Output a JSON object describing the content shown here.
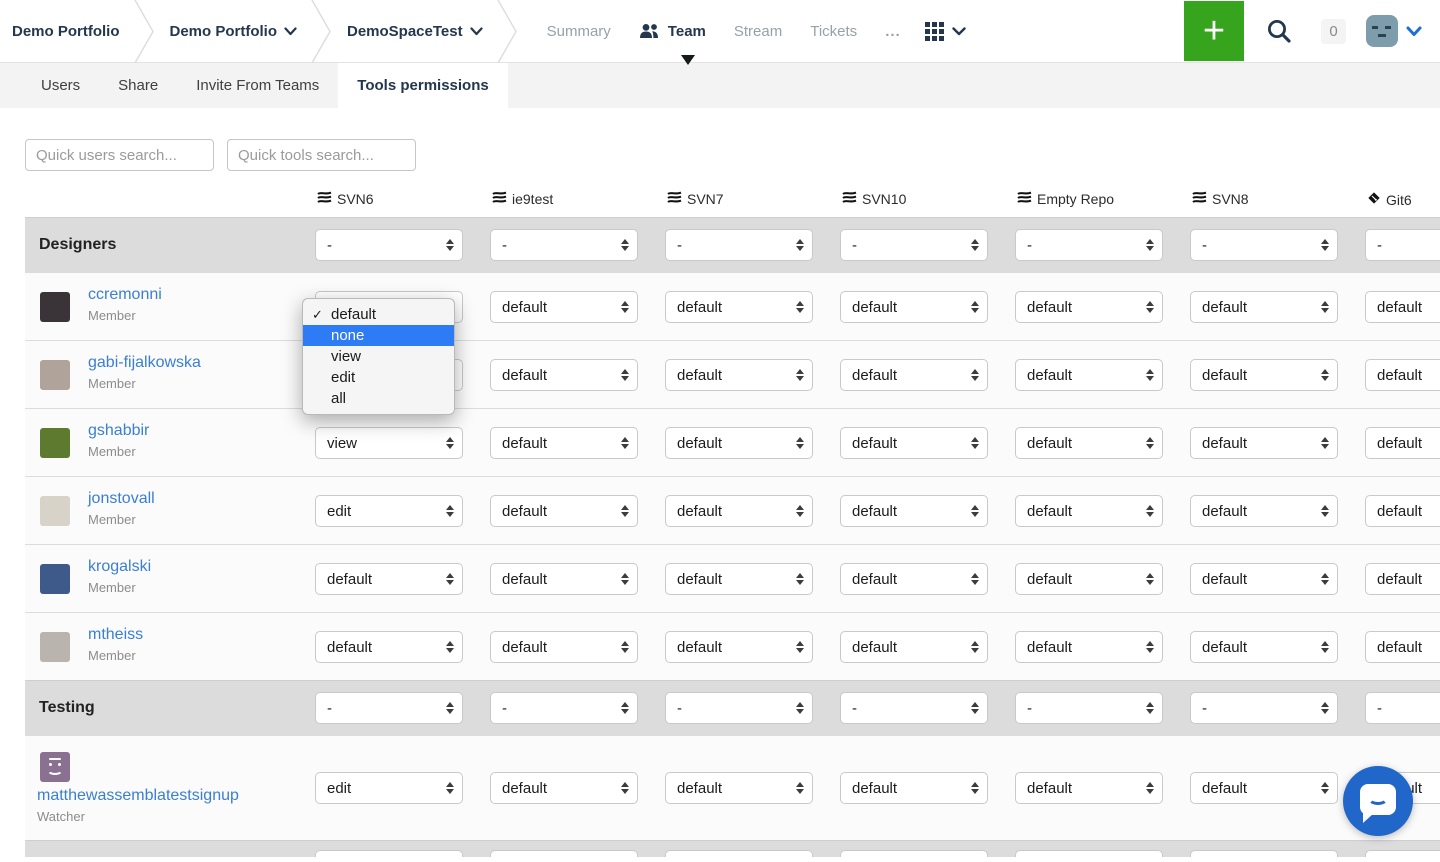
{
  "topbar": {
    "breadcrumbs": [
      {
        "label": "Demo Portfolio",
        "dropdown": false
      },
      {
        "label": "Demo Portfolio",
        "dropdown": true
      },
      {
        "label": "DemoSpaceTest",
        "dropdown": true
      }
    ],
    "nav": [
      {
        "label": "Summary",
        "active": false
      },
      {
        "label": "Team",
        "active": true,
        "icon": "team-icon"
      },
      {
        "label": "Stream",
        "active": false
      },
      {
        "label": "Tickets",
        "active": false
      },
      {
        "label": "...",
        "active": false
      }
    ],
    "badge_count": "0",
    "add_button_label": "+",
    "colors": {
      "add_green": "#36a51d",
      "caret_blue": "#1d6fd2",
      "avatar_slate": "#7e9dac"
    }
  },
  "tabs": [
    {
      "label": "Users",
      "active": false
    },
    {
      "label": "Share",
      "active": false
    },
    {
      "label": "Invite From Teams",
      "active": false
    },
    {
      "label": "Tools permissions",
      "active": true
    }
  ],
  "search": {
    "users_placeholder": "Quick users search...",
    "tools_placeholder": "Quick tools search..."
  },
  "table": {
    "columns": [
      {
        "name": "SVN6",
        "type": "svn"
      },
      {
        "name": "ie9test",
        "type": "svn"
      },
      {
        "name": "SVN7",
        "type": "svn"
      },
      {
        "name": "SVN10",
        "type": "svn"
      },
      {
        "name": "Empty Repo",
        "type": "svn"
      },
      {
        "name": "SVN8",
        "type": "svn"
      },
      {
        "name": "Git6",
        "type": "git"
      }
    ],
    "rows": [
      {
        "kind": "group",
        "label": "Designers",
        "values": [
          "-",
          "-",
          "-",
          "-",
          "-",
          "-",
          "-"
        ]
      },
      {
        "kind": "user",
        "name": "ccremonni",
        "role": "Member",
        "avatar_color": "#3a3438",
        "values": [
          "default",
          "default",
          "default",
          "default",
          "default",
          "default",
          "default"
        ]
      },
      {
        "kind": "user",
        "name": "gabi-fijalkowska",
        "role": "Member",
        "avatar_color": "#b0a49a",
        "values": [
          "default",
          "default",
          "default",
          "default",
          "default",
          "default",
          "default"
        ]
      },
      {
        "kind": "user",
        "name": "gshabbir",
        "role": "Member",
        "avatar_color": "#5d7a2e",
        "values": [
          "view",
          "default",
          "default",
          "default",
          "default",
          "default",
          "default"
        ]
      },
      {
        "kind": "user",
        "name": "jonstovall",
        "role": "Member",
        "avatar_color": "#d8d3c8",
        "values": [
          "edit",
          "default",
          "default",
          "default",
          "default",
          "default",
          "default"
        ]
      },
      {
        "kind": "user",
        "name": "krogalski",
        "role": "Member",
        "avatar_color": "#3d5a8a",
        "values": [
          "default",
          "default",
          "default",
          "default",
          "default",
          "default",
          "default"
        ]
      },
      {
        "kind": "user",
        "name": "mtheiss",
        "role": "Member",
        "avatar_color": "#b9b4ae",
        "values": [
          "default",
          "default",
          "default",
          "default",
          "default",
          "default",
          "default"
        ]
      },
      {
        "kind": "group",
        "label": "Testing",
        "values": [
          "-",
          "-",
          "-",
          "-",
          "-",
          "-",
          "-"
        ]
      },
      {
        "kind": "user",
        "name": "matthewassemblatestsignup",
        "role": "Watcher",
        "layout": "stacked",
        "avatar_color": "#8b7191",
        "avatar_icon": "smiley",
        "values": [
          "edit",
          "default",
          "default",
          "default",
          "default",
          "default",
          "default"
        ]
      },
      {
        "kind": "group",
        "label": "",
        "partial": true,
        "values": [
          "",
          "",
          "",
          "",
          "",
          "",
          ""
        ]
      }
    ]
  },
  "dropdown_menu": {
    "options": [
      {
        "label": "default",
        "checked": true
      },
      {
        "label": "none",
        "selected": true
      },
      {
        "label": "view"
      },
      {
        "label": "edit"
      },
      {
        "label": "all"
      }
    ],
    "highlight_color": "#2d7bf5"
  }
}
